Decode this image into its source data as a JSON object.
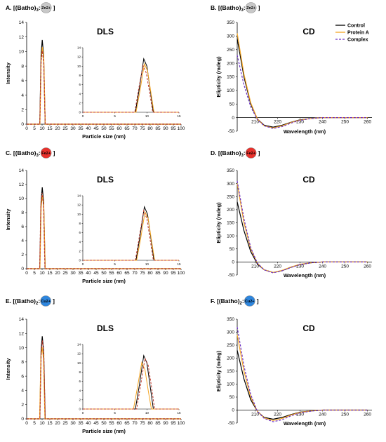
{
  "colors": {
    "control": "#000000",
    "proteinA": "#f5a623",
    "complex": "#6a2fc4",
    "complex_dls": "#c0392b",
    "grid": "#cccccc"
  },
  "legend": {
    "control": "Control",
    "proteinA": "Protein A",
    "complex": "Complex"
  },
  "chart_data": [
    {
      "id": "A",
      "type": "line",
      "panel_label": "A. [(Batho)",
      "panel_sub": "3",
      "panel_mid": ": ",
      "panel_end": " ]",
      "ion": "Zn2+",
      "ion_color": "#c8c8c8",
      "title": "DLS",
      "xlabel": "Particle size (nm)",
      "ylabel": "Intensity",
      "xlim": [
        0,
        100
      ],
      "ylim": [
        0,
        14
      ],
      "xticks": [
        0,
        5,
        10,
        15,
        20,
        25,
        30,
        35,
        40,
        45,
        50,
        55,
        60,
        65,
        70,
        75,
        80,
        85,
        90,
        95,
        100
      ],
      "yticks": [
        0,
        2,
        4,
        6,
        8,
        10,
        12,
        14
      ],
      "series": [
        {
          "key": "control",
          "x": [
            0,
            8.5,
            9.3,
            10.1,
            11,
            12,
            100
          ],
          "y": [
            0,
            0,
            9.5,
            11.6,
            9.5,
            0,
            0
          ]
        },
        {
          "key": "proteinA",
          "x": [
            0,
            8.6,
            9.4,
            10.2,
            11.1,
            12,
            100
          ],
          "y": [
            0,
            0,
            9,
            10.6,
            9,
            0,
            0
          ]
        },
        {
          "key": "complex",
          "x": [
            0,
            8.5,
            9.3,
            10.1,
            11,
            12,
            100
          ],
          "y": [
            0,
            0,
            8.5,
            10.1,
            8.5,
            0,
            0
          ]
        }
      ],
      "inset": {
        "xlim": [
          0,
          15
        ],
        "ylim": [
          0,
          14
        ],
        "xticks": [
          0,
          5,
          10,
          15
        ],
        "yticks": [
          0,
          2,
          4,
          6,
          8,
          10,
          12,
          14
        ],
        "series": [
          {
            "key": "control",
            "x": [
              0,
              8.2,
              8.8,
              9.5,
              10,
              10.5,
              11,
              15
            ],
            "y": [
              0,
              0,
              5,
              11.6,
              10,
              5,
              0,
              0
            ]
          },
          {
            "key": "proteinA",
            "x": [
              0,
              8.3,
              8.9,
              9.6,
              10.1,
              10.6,
              11.1,
              15
            ],
            "y": [
              0,
              0,
              4.5,
              10.5,
              9,
              4.5,
              0,
              0
            ]
          },
          {
            "key": "complex",
            "x": [
              0,
              8.1,
              8.7,
              9.4,
              9.9,
              10.4,
              10.9,
              15
            ],
            "y": [
              0,
              0,
              5,
              10.1,
              8.5,
              4.5,
              0,
              0
            ]
          }
        ]
      }
    },
    {
      "id": "B",
      "type": "line",
      "panel_label": "B. [(Batho)",
      "panel_sub": "3",
      "panel_mid": ": ",
      "panel_end": " ]",
      "ion": "Zn2+",
      "ion_color": "#c8c8c8",
      "title": "CD",
      "xlabel": "Wavelength (nm)",
      "ylabel": "Elipticity (mdeg)",
      "xlim": [
        202,
        262
      ],
      "ylim": [
        -50,
        350
      ],
      "xticks": [
        210,
        220,
        230,
        240,
        250,
        260
      ],
      "yticks": [
        -50,
        0,
        50,
        100,
        150,
        200,
        250,
        300,
        350
      ],
      "legend": true,
      "series": [
        {
          "key": "control",
          "x": [
            202,
            205,
            208,
            211,
            214,
            218,
            222,
            226,
            230,
            235,
            240,
            250,
            260
          ],
          "y": [
            290,
            150,
            50,
            -5,
            -28,
            -35,
            -28,
            -17,
            -8,
            -3,
            0,
            0,
            0
          ]
        },
        {
          "key": "proteinA",
          "x": [
            202,
            205,
            208,
            211,
            214,
            218,
            222,
            226,
            230,
            235,
            240,
            250,
            260
          ],
          "y": [
            310,
            160,
            55,
            -5,
            -30,
            -38,
            -30,
            -18,
            -9,
            -3,
            0,
            0,
            0
          ]
        },
        {
          "key": "complex",
          "x": [
            202,
            205,
            208,
            211,
            214,
            218,
            222,
            226,
            230,
            235,
            240,
            250,
            260
          ],
          "y": [
            230,
            120,
            40,
            -8,
            -30,
            -40,
            -33,
            -20,
            -10,
            -3,
            0,
            0,
            0
          ]
        }
      ]
    },
    {
      "id": "C",
      "type": "line",
      "panel_label": "C. [(Batho)",
      "panel_sub": "3",
      "panel_mid": ": ",
      "panel_end": " ]",
      "ion": "Fe2+",
      "ion_color": "#e8312c",
      "title": "DLS",
      "xlabel": "Particle size (nm)",
      "ylabel": "Intensity",
      "xlim": [
        0,
        100
      ],
      "ylim": [
        0,
        14
      ],
      "xticks": [
        0,
        5,
        10,
        15,
        20,
        25,
        30,
        35,
        40,
        45,
        50,
        55,
        60,
        65,
        70,
        75,
        80,
        85,
        90,
        95,
        100
      ],
      "yticks": [
        0,
        2,
        4,
        6,
        8,
        10,
        12,
        14
      ],
      "series": [
        {
          "key": "control",
          "x": [
            0,
            8.5,
            9.3,
            10.1,
            11,
            12,
            100
          ],
          "y": [
            0,
            0,
            9.5,
            11.6,
            9.5,
            0,
            0
          ]
        },
        {
          "key": "proteinA",
          "x": [
            0,
            8.6,
            9.4,
            10.2,
            11.1,
            12,
            100
          ],
          "y": [
            0,
            0,
            8.8,
            10.5,
            8.8,
            0,
            0
          ]
        },
        {
          "key": "complex",
          "x": [
            0,
            8.4,
            9.2,
            10,
            10.9,
            11.8,
            100
          ],
          "y": [
            0,
            0,
            9,
            10.8,
            9,
            0,
            0
          ]
        }
      ],
      "inset": {
        "xlim": [
          0,
          15
        ],
        "ylim": [
          0,
          14
        ],
        "xticks": [
          0,
          5,
          10,
          15
        ],
        "yticks": [
          0,
          2,
          4,
          6,
          8,
          10,
          12,
          14
        ],
        "series": [
          {
            "key": "control",
            "x": [
              0,
              8.3,
              8.9,
              9.6,
              10.1,
              10.6,
              11.1,
              15
            ],
            "y": [
              0,
              0,
              5,
              11.6,
              10,
              5,
              0,
              0
            ]
          },
          {
            "key": "proteinA",
            "x": [
              0,
              8.4,
              9,
              9.7,
              10.2,
              10.7,
              11.2,
              15
            ],
            "y": [
              0,
              0,
              4.5,
              10.5,
              9,
              4.5,
              0,
              0
            ]
          },
          {
            "key": "complex",
            "x": [
              0,
              8.2,
              8.8,
              9.5,
              10,
              10.5,
              11,
              15
            ],
            "y": [
              0,
              0,
              5,
              10.8,
              9,
              4.5,
              0,
              0
            ]
          }
        ]
      }
    },
    {
      "id": "D",
      "type": "line",
      "panel_label": "D. [(Batho)",
      "panel_sub": "3",
      "panel_mid": ": ",
      "panel_end": " ]",
      "ion": "Fe2+",
      "ion_color": "#e8312c",
      "title": "CD",
      "xlabel": "Wavelength (nm)",
      "ylabel": "Elipticity (mdeg)",
      "xlim": [
        202,
        262
      ],
      "ylim": [
        -50,
        350
      ],
      "xticks": [
        210,
        220,
        230,
        240,
        250,
        260
      ],
      "yticks": [
        -50,
        0,
        50,
        100,
        150,
        200,
        250,
        300,
        350
      ],
      "series": [
        {
          "key": "control",
          "x": [
            202,
            205,
            208,
            211,
            214,
            218,
            222,
            226,
            230,
            235,
            240,
            250,
            260
          ],
          "y": [
            230,
            120,
            40,
            -8,
            -30,
            -40,
            -33,
            -20,
            -10,
            -3,
            0,
            0,
            0
          ]
        },
        {
          "key": "proteinA",
          "x": [
            202,
            205,
            208,
            211,
            214,
            218,
            222,
            226,
            230,
            235,
            240,
            250,
            260
          ],
          "y": [
            300,
            150,
            50,
            -5,
            -30,
            -40,
            -32,
            -19,
            -9,
            -3,
            0,
            0,
            0
          ]
        },
        {
          "key": "complex",
          "x": [
            202,
            205,
            208,
            211,
            214,
            218,
            222,
            226,
            230,
            235,
            240,
            250,
            260
          ],
          "y": [
            310,
            165,
            55,
            -5,
            -30,
            -42,
            -34,
            -21,
            -10,
            -3,
            0,
            0,
            0
          ]
        }
      ]
    },
    {
      "id": "E",
      "type": "line",
      "panel_label": "E. [(Batho)",
      "panel_sub": "2",
      "panel_mid": ": ",
      "panel_end": " ]",
      "ion": "Cu2+",
      "ion_color": "#2e86de",
      "title": "DLS",
      "xlabel": "Particle size (nm)",
      "ylabel": "Intensity",
      "xlim": [
        0,
        100
      ],
      "ylim": [
        0,
        14
      ],
      "xticks": [
        0,
        5,
        10,
        15,
        20,
        25,
        30,
        35,
        40,
        45,
        50,
        55,
        60,
        65,
        70,
        75,
        80,
        85,
        90,
        95,
        100
      ],
      "yticks": [
        0,
        2,
        4,
        6,
        8,
        10,
        12,
        14
      ],
      "series": [
        {
          "key": "control",
          "x": [
            0,
            8.5,
            9.3,
            10.1,
            11,
            12,
            100
          ],
          "y": [
            0,
            0,
            9.5,
            11.6,
            9.5,
            0,
            0
          ]
        },
        {
          "key": "proteinA",
          "x": [
            0,
            8.4,
            9.2,
            10,
            10.9,
            11.8,
            100
          ],
          "y": [
            0,
            0,
            8.5,
            10.1,
            8.5,
            0,
            0
          ]
        },
        {
          "key": "complex",
          "x": [
            0,
            8.6,
            9.4,
            10.2,
            11.1,
            12,
            100
          ],
          "y": [
            0,
            0,
            9.3,
            11,
            9.3,
            0,
            0
          ]
        }
      ],
      "inset": {
        "xlim": [
          0,
          15
        ],
        "ylim": [
          0,
          14
        ],
        "xticks": [
          0,
          5,
          10,
          15
        ],
        "yticks": [
          0,
          2,
          4,
          6,
          8,
          10,
          12,
          14
        ],
        "series": [
          {
            "key": "control",
            "x": [
              0,
              8.2,
              8.8,
              9.5,
              10,
              10.5,
              11,
              15
            ],
            "y": [
              0,
              0,
              5,
              11.6,
              10,
              5,
              0,
              0
            ]
          },
          {
            "key": "proteinA",
            "x": [
              0,
              7.9,
              8.5,
              9.2,
              9.7,
              10.2,
              10.7,
              15
            ],
            "y": [
              0,
              0,
              4.5,
              10.1,
              8.5,
              4,
              0,
              0
            ]
          },
          {
            "key": "complex",
            "x": [
              0,
              8.4,
              9,
              9.7,
              10.2,
              10.7,
              11.2,
              15
            ],
            "y": [
              0,
              0,
              5,
              11,
              9.5,
              5,
              0,
              0
            ]
          }
        ]
      }
    },
    {
      "id": "F",
      "type": "line",
      "panel_label": "F. [(Batho)",
      "panel_sub": "2",
      "panel_mid": ": ",
      "panel_end": " ]",
      "ion": "Cu2+",
      "ion_color": "#2e86de",
      "title": "CD",
      "xlabel": "Wavelength (nm)",
      "ylabel": "Elipticity (mdeg)",
      "xlim": [
        202,
        262
      ],
      "ylim": [
        -50,
        350
      ],
      "xticks": [
        210,
        220,
        230,
        240,
        250,
        260
      ],
      "yticks": [
        -50,
        0,
        50,
        100,
        150,
        200,
        250,
        300,
        350
      ],
      "series": [
        {
          "key": "control",
          "x": [
            202,
            205,
            208,
            211,
            214,
            218,
            222,
            226,
            230,
            235,
            240,
            250,
            260
          ],
          "y": [
            230,
            120,
            40,
            -5,
            -28,
            -35,
            -28,
            -17,
            -8,
            -3,
            0,
            0,
            0
          ]
        },
        {
          "key": "proteinA",
          "x": [
            202,
            205,
            208,
            211,
            214,
            218,
            222,
            226,
            230,
            235,
            240,
            250,
            260
          ],
          "y": [
            290,
            150,
            50,
            -5,
            -30,
            -40,
            -32,
            -19,
            -9,
            -3,
            0,
            0,
            0
          ]
        },
        {
          "key": "complex",
          "x": [
            202,
            205,
            208,
            211,
            214,
            218,
            222,
            226,
            230,
            235,
            240,
            250,
            260
          ],
          "y": [
            320,
            170,
            60,
            -5,
            -32,
            -45,
            -37,
            -22,
            -11,
            -4,
            0,
            0,
            0
          ]
        }
      ]
    }
  ]
}
